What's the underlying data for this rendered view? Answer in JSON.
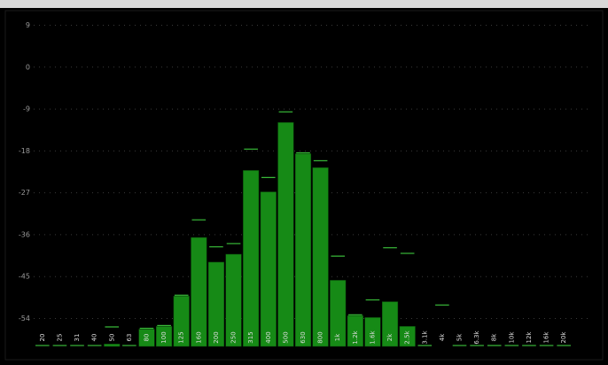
{
  "chart_data": {
    "type": "bar",
    "categories": [
      "20",
      "25",
      "31",
      "40",
      "50",
      "63",
      "80",
      "100",
      "125",
      "160",
      "200",
      "250",
      "315",
      "400",
      "500",
      "630",
      "800",
      "1k",
      "1.2k",
      "1.6k",
      "2k",
      "2.5k",
      "3.1k",
      "4k",
      "5k",
      "6.3k",
      "8k",
      "10k",
      "12k",
      "16k",
      "20k"
    ],
    "values": [
      -60,
      -60,
      -60,
      -60,
      -59.5,
      -60,
      -56.3,
      -55.7,
      -49.2,
      -36.6,
      -41.9,
      -40.2,
      -22.2,
      -26.8,
      -11.9,
      -18.6,
      -21.6,
      -45.8,
      -53.4,
      -53.8,
      -50.4,
      -55.7,
      -60,
      -60,
      -60,
      -60,
      -60,
      -60,
      -60,
      -60,
      -60
    ],
    "peaks": [
      -60,
      -60,
      -60,
      -60,
      -56,
      -60,
      -56.3,
      -55.7,
      -49.2,
      -33,
      -38.8,
      -38.1,
      -17.8,
      -23.9,
      -9.8,
      -18.6,
      -20.3,
      -40.8,
      -53.4,
      -50.2,
      -39,
      -40.2,
      -60,
      -51.3,
      -60,
      -60,
      -60,
      -60,
      -60,
      -60,
      -60
    ],
    "color": "#168a16",
    "peak_color": "#38b838",
    "ylim": [
      -60,
      11
    ],
    "yticks": [
      9,
      0,
      -9,
      -18,
      -27,
      -36,
      -45,
      -54
    ],
    "grid": true
  }
}
